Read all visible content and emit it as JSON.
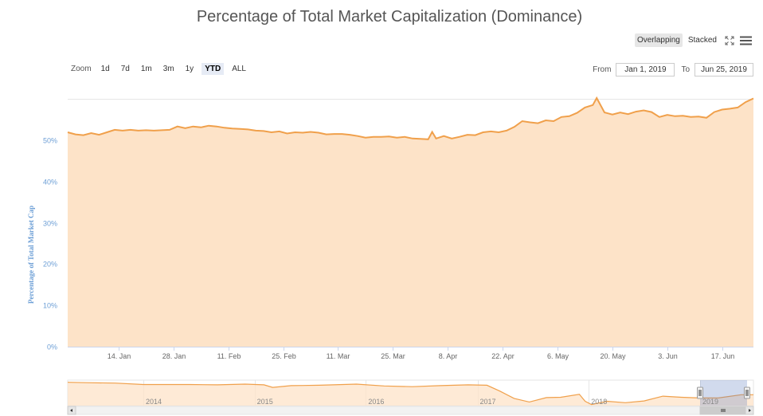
{
  "chart_data": {
    "type": "area",
    "title": "Percentage of Total Market Capitalization (Dominance)",
    "ylabel": "Percentage of Total Market Cap",
    "ylim": [
      0,
      60
    ],
    "yticks": [
      "0%",
      "10%",
      "20%",
      "30%",
      "40%",
      "50%"
    ],
    "yticks_values": [
      0,
      10,
      20,
      30,
      40,
      50
    ],
    "xlim": [
      "2019-01-01",
      "2019-06-25"
    ],
    "xticks": [
      {
        "date": "2019-01-14",
        "label": "14. Jan"
      },
      {
        "date": "2019-01-28",
        "label": "28. Jan"
      },
      {
        "date": "2019-02-11",
        "label": "11. Feb"
      },
      {
        "date": "2019-02-25",
        "label": "25. Feb"
      },
      {
        "date": "2019-03-11",
        "label": "11. Mar"
      },
      {
        "date": "2019-03-25",
        "label": "25. Mar"
      },
      {
        "date": "2019-04-08",
        "label": "8. Apr"
      },
      {
        "date": "2019-04-22",
        "label": "22. Apr"
      },
      {
        "date": "2019-05-06",
        "label": "6. May"
      },
      {
        "date": "2019-05-20",
        "label": "20. May"
      },
      {
        "date": "2019-06-03",
        "label": "3. Jun"
      },
      {
        "date": "2019-06-17",
        "label": "17. Jun"
      }
    ],
    "grid": true,
    "series": [
      {
        "color": "#f0a04b",
        "fill": "#fde3c8",
        "points": [
          [
            "2019-01-01",
            51.9
          ],
          [
            "2019-01-03",
            51.4
          ],
          [
            "2019-01-05",
            51.2
          ],
          [
            "2019-01-07",
            51.7
          ],
          [
            "2019-01-09",
            51.3
          ],
          [
            "2019-01-11",
            51.9
          ],
          [
            "2019-01-13",
            52.5
          ],
          [
            "2019-01-15",
            52.3
          ],
          [
            "2019-01-17",
            52.5
          ],
          [
            "2019-01-19",
            52.3
          ],
          [
            "2019-01-21",
            52.4
          ],
          [
            "2019-01-23",
            52.3
          ],
          [
            "2019-01-25",
            52.4
          ],
          [
            "2019-01-27",
            52.5
          ],
          [
            "2019-01-29",
            53.3
          ],
          [
            "2019-01-31",
            52.9
          ],
          [
            "2019-02-02",
            53.3
          ],
          [
            "2019-02-04",
            53.1
          ],
          [
            "2019-02-06",
            53.5
          ],
          [
            "2019-02-08",
            53.3
          ],
          [
            "2019-02-10",
            53.0
          ],
          [
            "2019-02-12",
            52.8
          ],
          [
            "2019-02-14",
            52.7
          ],
          [
            "2019-02-16",
            52.6
          ],
          [
            "2019-02-18",
            52.3
          ],
          [
            "2019-02-20",
            52.2
          ],
          [
            "2019-02-22",
            51.9
          ],
          [
            "2019-02-24",
            52.1
          ],
          [
            "2019-02-26",
            51.6
          ],
          [
            "2019-02-28",
            51.9
          ],
          [
            "2019-03-02",
            51.8
          ],
          [
            "2019-03-04",
            52.0
          ],
          [
            "2019-03-06",
            51.8
          ],
          [
            "2019-03-08",
            51.4
          ],
          [
            "2019-03-10",
            51.5
          ],
          [
            "2019-03-12",
            51.5
          ],
          [
            "2019-03-14",
            51.3
          ],
          [
            "2019-03-16",
            51.0
          ],
          [
            "2019-03-18",
            50.6
          ],
          [
            "2019-03-20",
            50.8
          ],
          [
            "2019-03-22",
            50.8
          ],
          [
            "2019-03-24",
            50.9
          ],
          [
            "2019-03-26",
            50.6
          ],
          [
            "2019-03-28",
            50.8
          ],
          [
            "2019-03-30",
            50.4
          ],
          [
            "2019-04-01",
            50.3
          ],
          [
            "2019-04-03",
            50.2
          ],
          [
            "2019-04-04",
            52.0
          ],
          [
            "2019-04-05",
            50.4
          ],
          [
            "2019-04-07",
            51.0
          ],
          [
            "2019-04-09",
            50.4
          ],
          [
            "2019-04-11",
            50.8
          ],
          [
            "2019-04-13",
            51.3
          ],
          [
            "2019-04-15",
            51.2
          ],
          [
            "2019-04-17",
            51.9
          ],
          [
            "2019-04-19",
            52.1
          ],
          [
            "2019-04-21",
            51.9
          ],
          [
            "2019-04-23",
            52.3
          ],
          [
            "2019-04-25",
            53.2
          ],
          [
            "2019-04-27",
            54.6
          ],
          [
            "2019-04-29",
            54.3
          ],
          [
            "2019-05-01",
            54.1
          ],
          [
            "2019-05-03",
            54.8
          ],
          [
            "2019-05-05",
            54.6
          ],
          [
            "2019-05-07",
            55.6
          ],
          [
            "2019-05-09",
            55.8
          ],
          [
            "2019-05-11",
            56.6
          ],
          [
            "2019-05-13",
            57.9
          ],
          [
            "2019-05-15",
            58.5
          ],
          [
            "2019-05-16",
            60.2
          ],
          [
            "2019-05-18",
            56.7
          ],
          [
            "2019-05-20",
            56.2
          ],
          [
            "2019-05-22",
            56.7
          ],
          [
            "2019-05-24",
            56.3
          ],
          [
            "2019-05-26",
            56.9
          ],
          [
            "2019-05-28",
            57.2
          ],
          [
            "2019-05-30",
            56.8
          ],
          [
            "2019-06-01",
            55.6
          ],
          [
            "2019-06-03",
            56.1
          ],
          [
            "2019-06-05",
            55.8
          ],
          [
            "2019-06-07",
            55.9
          ],
          [
            "2019-06-09",
            55.6
          ],
          [
            "2019-06-11",
            55.7
          ],
          [
            "2019-06-13",
            55.4
          ],
          [
            "2019-06-15",
            56.8
          ],
          [
            "2019-06-17",
            57.4
          ],
          [
            "2019-06-19",
            57.6
          ],
          [
            "2019-06-21",
            57.9
          ],
          [
            "2019-06-23",
            59.2
          ],
          [
            "2019-06-25",
            60.1
          ]
        ]
      }
    ],
    "navigator": {
      "xlim": [
        "2013-04-28",
        "2019-06-25"
      ],
      "labels": [
        {
          "date": "2014-01-01",
          "label": "2014"
        },
        {
          "date": "2015-01-01",
          "label": "2015"
        },
        {
          "date": "2016-01-01",
          "label": "2016"
        },
        {
          "date": "2017-01-01",
          "label": "2017"
        },
        {
          "date": "2018-01-01",
          "label": "2018"
        },
        {
          "date": "2019-01-01",
          "label": "2019"
        }
      ],
      "ylim": [
        30,
        100
      ],
      "points": [
        [
          "2013-04-28",
          94
        ],
        [
          "2013-07-01",
          93
        ],
        [
          "2013-10-01",
          92
        ],
        [
          "2014-01-01",
          88
        ],
        [
          "2014-03-01",
          88
        ],
        [
          "2014-06-01",
          88
        ],
        [
          "2014-09-01",
          87
        ],
        [
          "2014-12-01",
          89
        ],
        [
          "2015-02-01",
          87
        ],
        [
          "2015-03-01",
          80
        ],
        [
          "2015-05-01",
          85
        ],
        [
          "2015-08-01",
          86
        ],
        [
          "2015-12-01",
          89
        ],
        [
          "2016-03-01",
          84
        ],
        [
          "2016-06-01",
          82
        ],
        [
          "2016-09-01",
          85
        ],
        [
          "2016-12-01",
          87
        ],
        [
          "2017-02-01",
          86
        ],
        [
          "2017-03-15",
          70
        ],
        [
          "2017-05-01",
          50
        ],
        [
          "2017-06-20",
          40
        ],
        [
          "2017-08-15",
          52
        ],
        [
          "2017-10-01",
          53
        ],
        [
          "2017-12-01",
          61
        ],
        [
          "2017-12-20",
          42
        ],
        [
          "2018-01-10",
          33
        ],
        [
          "2018-03-01",
          42
        ],
        [
          "2018-05-01",
          38
        ],
        [
          "2018-07-01",
          43
        ],
        [
          "2018-09-01",
          56
        ],
        [
          "2018-11-01",
          53
        ],
        [
          "2019-01-01",
          51
        ],
        [
          "2019-03-01",
          51
        ],
        [
          "2019-05-16",
          60
        ],
        [
          "2019-06-25",
          60
        ]
      ],
      "selected": [
        "2019-01-01",
        "2019-06-25"
      ]
    }
  },
  "controls": {
    "zoom_label": "Zoom",
    "zoom_buttons": [
      "1d",
      "7d",
      "1m",
      "3m",
      "1y",
      "YTD",
      "ALL"
    ],
    "zoom_active": "YTD",
    "from_label": "From",
    "from_value": "Jan 1, 2019",
    "to_label": "To",
    "to_value": "Jun 25, 2019",
    "mode_overlapping": "Overlapping",
    "mode_stacked": "Stacked",
    "mode_active": "Overlapping"
  },
  "icons": {
    "fullscreen": "expand-icon",
    "menu": "hamburger-menu-icon"
  }
}
